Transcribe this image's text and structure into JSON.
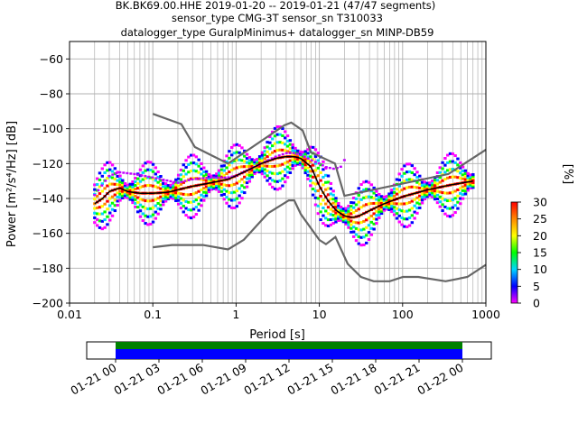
{
  "title": {
    "line1": "BK.BK69.00.HHE   2019-01-20 -- 2019-01-21  (47/47 segments)",
    "line2": "sensor_type CMG-3T sensor_sn T310033",
    "line3": "datalogger_type GuralpMinimus+ datalogger_sn MINP-DB59"
  },
  "chart_data": [
    {
      "type": "heatmap",
      "subtype": "probabilistic-power-spectral-density",
      "xlabel": "Period [s]",
      "ylabel": "Power [m²/s⁴/Hz] [dB]",
      "xscale": "log",
      "xlim": [
        0.01,
        1000
      ],
      "ylim": [
        -200,
        -50
      ],
      "xticks": [
        0.01,
        0.1,
        1,
        10,
        100,
        1000
      ],
      "xtick_labels": [
        "0.01",
        "0.1",
        "1",
        "10",
        "100",
        "1000"
      ],
      "yticks": [
        -200,
        -180,
        -160,
        -140,
        -120,
        -100,
        -80,
        -60
      ],
      "ytick_labels": [
        "−200",
        "−180",
        "−160",
        "−140",
        "−120",
        "−100",
        "−80",
        "−60"
      ],
      "grid": true,
      "colorbar": {
        "label": "[%]",
        "range": [
          0,
          30
        ],
        "ticks": [
          0,
          5,
          10,
          15,
          20,
          25,
          30
        ],
        "tick_labels": [
          "0",
          "5",
          "10",
          "15",
          "20",
          "25",
          "30"
        ],
        "colormap": [
          "#ff00ff",
          "#0000ff",
          "#00d5ff",
          "#00ff00",
          "#ffff00",
          "#ff8800",
          "#ff0000"
        ]
      },
      "noise_model_high": {
        "period": [
          0.1,
          0.22,
          0.32,
          0.8,
          3.8,
          4.6,
          6.3,
          7.9,
          15.4,
          20,
          354.8,
          1000
        ],
        "power": [
          -91.5,
          -97.4,
          -110.5,
          -120,
          -98,
          -96.5,
          -101,
          -113.5,
          -120,
          -138.5,
          -126,
          -112
        ]
      },
      "noise_model_low": {
        "period": [
          0.1,
          0.17,
          0.4,
          0.8,
          1.24,
          2.4,
          4.3,
          5,
          6,
          10,
          12,
          15.6,
          21.9,
          31.6,
          45,
          70,
          101,
          154,
          328,
          600,
          1000
        ],
        "power": [
          -168,
          -166.7,
          -166.7,
          -169.2,
          -163.7,
          -148.6,
          -141.1,
          -141.1,
          -149,
          -163.8,
          -166.2,
          -162.1,
          -177.5,
          -185,
          -187.5,
          -187.5,
          -185,
          -185,
          -187.5,
          -185,
          -178
        ]
      },
      "mode_curve": {
        "period": [
          0.02,
          0.025,
          0.03,
          0.04,
          0.05,
          0.07,
          0.1,
          0.15,
          0.2,
          0.3,
          0.5,
          0.8,
          1,
          1.5,
          2,
          3,
          4,
          5,
          6,
          8,
          10,
          13,
          16,
          20,
          25,
          30,
          40,
          60,
          100,
          200,
          400,
          700
        ],
        "power": [
          -143,
          -140,
          -136,
          -134,
          -136,
          -137,
          -137,
          -136.5,
          -135,
          -133,
          -131,
          -129,
          -127,
          -123,
          -120,
          -117,
          -116,
          -116,
          -117,
          -122,
          -133,
          -142,
          -147,
          -150,
          -151,
          -150,
          -147,
          -143,
          -139,
          -135,
          -132,
          -130
        ]
      },
      "scatter_curve": {
        "period": [
          0.02,
          0.03,
          0.04,
          0.06,
          0.1,
          0.2,
          0.3,
          0.5,
          0.8,
          1,
          2,
          3,
          4,
          5,
          6,
          8,
          10,
          12,
          15,
          18,
          20
        ],
        "power": [
          -138,
          -127,
          -125,
          -126,
          -128,
          -131,
          -129,
          -128,
          -128,
          -127,
          -120,
          -116,
          -114,
          -114,
          -115,
          -118,
          -120,
          -122,
          -123,
          -122,
          -118
        ]
      }
    },
    {
      "type": "timeline",
      "x_labels": [
        "01-21 00",
        "01-21 03",
        "01-21 06",
        "01-21 09",
        "01-21 12",
        "01-21 15",
        "01-21 18",
        "01-21 21",
        "01-22 00"
      ],
      "range_hours": [
        -2,
        26
      ],
      "coverage_hours": [
        0,
        24
      ],
      "bands": [
        {
          "color": "#008000"
        },
        {
          "color": "#0000ff"
        }
      ]
    }
  ]
}
